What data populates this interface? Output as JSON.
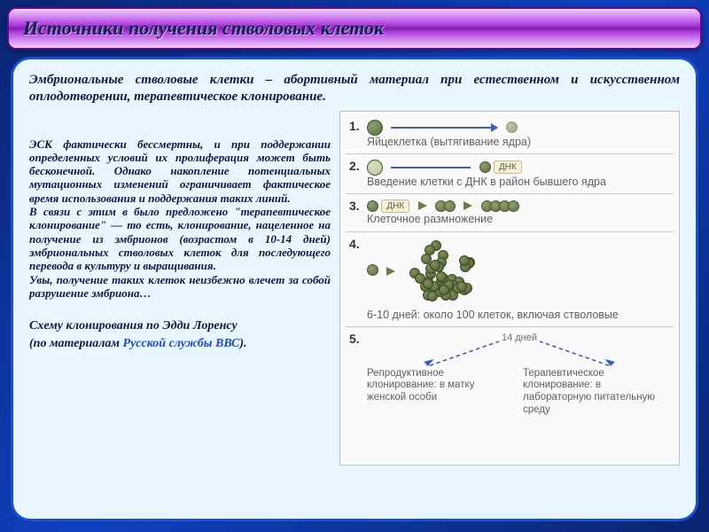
{
  "title": "Источники получения стволовых клеток",
  "intro": "Эмбриональные стволовые клетки – абортивный материал при естественном и искусственном оплодотворении, терапевтическое клонирование.",
  "body": "ЭСК фактически бессмертны, и при поддержании определенных условий их пролиферация может быть бесконечной. Однако накопление потенциальных мутационных изменений ограничивает фактическое время использования и поддержания таких линий.\nВ связи с этим в было предложено \"терапевтическое клонирование\" — то есть, клонирование, нацеленное на получение из эмбрионов (возрастом в 10-14 дней) эмбриональных стволовых клеток для последующего перевода в культуру и выращивания.\nУвы, получение таких клеток неизбежно влечет за собой разрушение эмбриона…",
  "scheme_caption": "Схему клонирования по Эдди Лоренсу",
  "credit_prefix": "(по материалам ",
  "credit_link": "Русской службы ВВС",
  "credit_suffix": ").",
  "diagram": {
    "step1": {
      "num": "1.",
      "label": "Яйцеклетка (вытягивание ядра)"
    },
    "step2": {
      "num": "2.",
      "dna": "ДНК",
      "label": "Введение клетки с ДНК в район бывшего ядра"
    },
    "step3": {
      "num": "3.",
      "dna": "ДНК",
      "label": "Клеточное размножение"
    },
    "step4": {
      "num": "4.",
      "label": "6-10 дней: около 100 клеток, включая стволовые"
    },
    "step5": {
      "num": "5.",
      "days": "14 дней",
      "left": "Репродуктивное клонирование: в матку женской особи",
      "right": "Терапевтическое клонирование: в лабораторную питательную среду"
    }
  },
  "colors": {
    "bg_gradient": [
      "#0a2570",
      "#1040c0",
      "#0a2570"
    ],
    "title_gradient": [
      "#f5d0ff",
      "#b040e0",
      "#8020b0"
    ],
    "card_bg": "#e8f6ff",
    "card_border": "#1a50d0",
    "text": "#0e1a40",
    "link": "#1a4ad0",
    "diagram_bg": "#fafafa",
    "cell": "#5e6e3e",
    "arrow_blue": "#3a5fb0"
  }
}
